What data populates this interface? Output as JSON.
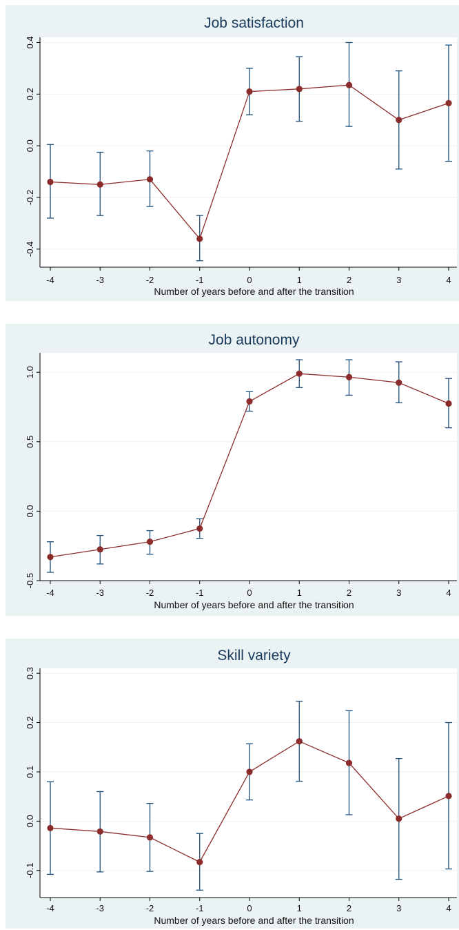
{
  "chart_data": [
    {
      "type": "line",
      "title": "Job satisfaction",
      "xlabel": "Number of years before and after the transition",
      "ylabel": "",
      "x": [
        -4,
        -3,
        -2,
        -1,
        0,
        1,
        2,
        3,
        4
      ],
      "x_tick_labels": [
        "-4",
        "-3",
        "-2",
        "-1",
        "0",
        "1",
        "2",
        "3",
        "4"
      ],
      "y": [
        -0.14,
        -0.15,
        -0.13,
        -0.36,
        0.21,
        0.22,
        0.235,
        0.1,
        0.165
      ],
      "ci_low": [
        -0.28,
        -0.27,
        -0.235,
        -0.445,
        0.12,
        0.095,
        0.075,
        -0.09,
        -0.06
      ],
      "ci_high": [
        0.005,
        -0.025,
        -0.02,
        -0.27,
        0.3,
        0.345,
        0.4,
        0.29,
        0.39
      ],
      "y_ticks": [
        -0.4,
        -0.2,
        0.0,
        0.2,
        0.4
      ],
      "y_tick_labels": [
        "-0.4",
        "-0.2",
        "0.0",
        "0.2",
        "0.4"
      ],
      "ylim": [
        -0.47,
        0.42
      ],
      "grid": true,
      "colors": {
        "line": "#8b2b2b",
        "marker": "#8b2b2b",
        "errorbar": "#1f4e79",
        "grid": "#eef3f6"
      }
    },
    {
      "type": "line",
      "title": "Job autonomy",
      "xlabel": "Number of years before and after the transition",
      "ylabel": "",
      "x": [
        -4,
        -3,
        -2,
        -1,
        0,
        1,
        2,
        3,
        4
      ],
      "x_tick_labels": [
        "-4",
        "-3",
        "-2",
        "-1",
        "0",
        "1",
        "2",
        "3",
        "4"
      ],
      "y": [
        -0.33,
        -0.275,
        -0.22,
        -0.125,
        0.79,
        0.99,
        0.965,
        0.925,
        0.775
      ],
      "ci_low": [
        -0.44,
        -0.38,
        -0.31,
        -0.195,
        0.72,
        0.89,
        0.835,
        0.78,
        0.6
      ],
      "ci_high": [
        -0.22,
        -0.175,
        -0.14,
        -0.055,
        0.86,
        1.09,
        1.09,
        1.075,
        0.955
      ],
      "y_ticks": [
        -0.5,
        0.0,
        0.5,
        1.0
      ],
      "y_tick_labels": [
        "-0.5",
        "0.0",
        "0.5",
        "1.0"
      ],
      "ylim": [
        -0.5,
        1.14
      ],
      "grid": true,
      "colors": {
        "line": "#8b2b2b",
        "marker": "#8b2b2b",
        "errorbar": "#1f4e79",
        "grid": "#eef3f6"
      }
    },
    {
      "type": "line",
      "title": "Skill variety",
      "xlabel": "Number of years before and after the transition",
      "ylabel": "",
      "x": [
        -4,
        -3,
        -2,
        -1,
        0,
        1,
        2,
        3,
        4
      ],
      "x_tick_labels": [
        "-4",
        "-3",
        "-2",
        "-1",
        "0",
        "1",
        "2",
        "3",
        "4"
      ],
      "y": [
        -0.014,
        -0.021,
        -0.033,
        -0.083,
        0.1,
        0.162,
        0.118,
        0.005,
        0.051
      ],
      "ci_low": [
        -0.108,
        -0.103,
        -0.102,
        -0.14,
        0.043,
        0.081,
        0.013,
        -0.118,
        -0.097
      ],
      "ci_high": [
        0.08,
        0.06,
        0.036,
        -0.025,
        0.157,
        0.243,
        0.224,
        0.127,
        0.2
      ],
      "y_ticks": [
        -0.1,
        0.0,
        0.1,
        0.2,
        0.3
      ],
      "y_tick_labels": [
        "-0.1",
        "0.0",
        "0.1",
        "0.2",
        "0.3"
      ],
      "ylim": [
        -0.155,
        0.31
      ],
      "grid": true,
      "colors": {
        "line": "#8b2b2b",
        "marker": "#8b2b2b",
        "errorbar": "#1f4e79",
        "grid": "#eef3f6"
      }
    }
  ]
}
